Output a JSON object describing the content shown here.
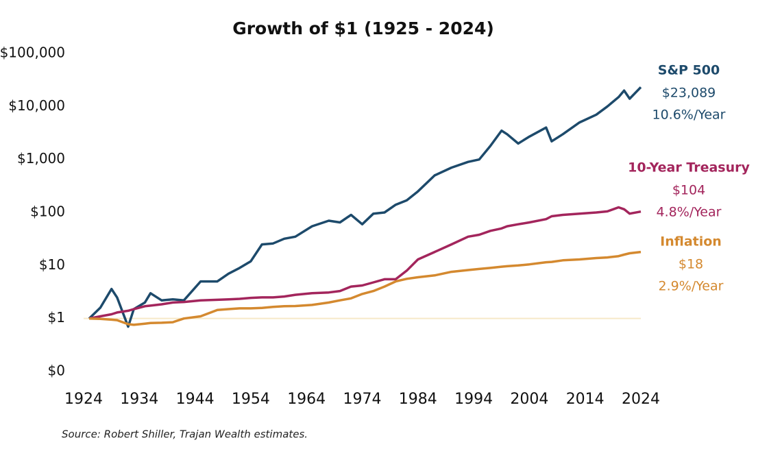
{
  "chart_data": {
    "type": "line",
    "title": "Growth of $1 (1925 - 2024)",
    "source": "Source: Robert Shiller, Trajan Wealth estimates.",
    "log_y": true,
    "xlim": [
      1924,
      2024
    ],
    "xticks": [
      1924,
      1934,
      1944,
      1954,
      1964,
      1974,
      1984,
      1994,
      2004,
      2014,
      2024
    ],
    "ylim": [
      0.1,
      100000
    ],
    "yticks": [
      {
        "value": 0.1,
        "label": "$0"
      },
      {
        "value": 1,
        "label": "$1"
      },
      {
        "value": 10,
        "label": "$10"
      },
      {
        "value": 100,
        "label": "$100"
      },
      {
        "value": 1000,
        "label": "$1,000"
      },
      {
        "value": 10000,
        "label": "$10,000"
      },
      {
        "value": 100000,
        "label": "$100,000"
      }
    ],
    "reference_line": {
      "value": 1,
      "color": "#f6e9c8"
    },
    "x": [
      1925,
      1927,
      1929,
      1930,
      1932,
      1933,
      1935,
      1936,
      1938,
      1940,
      1942,
      1945,
      1948,
      1950,
      1952,
      1954,
      1956,
      1958,
      1960,
      1962,
      1965,
      1968,
      1970,
      1972,
      1974,
      1976,
      1978,
      1980,
      1982,
      1984,
      1987,
      1990,
      1993,
      1995,
      1997,
      1999,
      2000,
      2002,
      2004,
      2007,
      2008,
      2010,
      2013,
      2016,
      2018,
      2020,
      2021,
      2022,
      2024
    ],
    "series": [
      {
        "name": "S&P 500",
        "color": "#1d4a6b",
        "end_label": "$23,089",
        "end_value": 23089,
        "rate_label": "10.6%/Year",
        "values": [
          1,
          1.6,
          3.6,
          2.5,
          0.7,
          1.5,
          2,
          3,
          2.2,
          2.3,
          2.2,
          5,
          5,
          7,
          9,
          12,
          25,
          26,
          32,
          35,
          55,
          70,
          65,
          90,
          60,
          95,
          100,
          140,
          170,
          250,
          500,
          700,
          900,
          1000,
          1800,
          3500,
          3000,
          2000,
          2700,
          4000,
          2200,
          3000,
          5000,
          7000,
          10000,
          15000,
          20000,
          14000,
          23089
        ]
      },
      {
        "name": "10-Year Treasury",
        "color": "#a3255c",
        "end_label": "$104",
        "end_value": 104,
        "rate_label": "4.8%/Year",
        "values": [
          1,
          1.1,
          1.2,
          1.3,
          1.4,
          1.5,
          1.7,
          1.75,
          1.85,
          2.0,
          2.05,
          2.2,
          2.25,
          2.3,
          2.35,
          2.45,
          2.5,
          2.5,
          2.6,
          2.8,
          3.0,
          3.1,
          3.3,
          4.0,
          4.2,
          4.8,
          5.5,
          5.5,
          8,
          13,
          18,
          25,
          35,
          38,
          45,
          50,
          55,
          60,
          65,
          75,
          85,
          90,
          95,
          100,
          105,
          125,
          115,
          95,
          104
        ]
      },
      {
        "name": "Inflation",
        "color": "#d4892f",
        "end_label": "$18",
        "end_value": 18,
        "rate_label": "2.9%/Year",
        "values": [
          1,
          0.98,
          0.95,
          0.93,
          0.78,
          0.76,
          0.8,
          0.82,
          0.83,
          0.85,
          1.0,
          1.1,
          1.45,
          1.5,
          1.55,
          1.55,
          1.58,
          1.65,
          1.7,
          1.72,
          1.8,
          2.0,
          2.2,
          2.4,
          2.9,
          3.3,
          4.0,
          5.0,
          5.6,
          6.0,
          6.5,
          7.6,
          8.2,
          8.6,
          9.0,
          9.5,
          9.7,
          10,
          10.5,
          11.5,
          11.7,
          12.5,
          13,
          13.8,
          14.2,
          15,
          16,
          17,
          18
        ]
      }
    ]
  }
}
